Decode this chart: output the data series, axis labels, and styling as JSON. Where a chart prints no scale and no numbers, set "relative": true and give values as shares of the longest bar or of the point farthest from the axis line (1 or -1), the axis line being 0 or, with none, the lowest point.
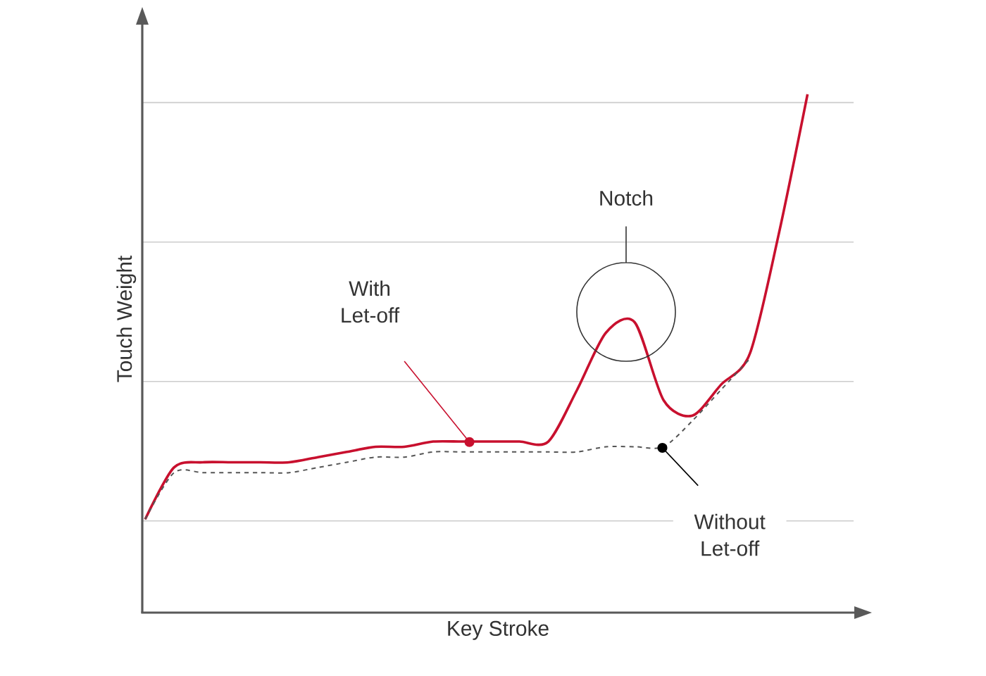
{
  "chart_data": {
    "type": "line",
    "relative": true,
    "xlabel": "Key Stroke",
    "ylabel": "Touch Weight",
    "grid": "y",
    "marker": "none",
    "categories": [
      null,
      null,
      null,
      null,
      null,
      null,
      null,
      null,
      null,
      null,
      null,
      null,
      null,
      null,
      null,
      null,
      null,
      null,
      null,
      null,
      null,
      null,
      null,
      null
    ],
    "series": [
      {
        "color": "#c8102e",
        "line_style": "solid",
        "values": [
          0.18,
          0.28,
          0.29,
          0.29,
          0.29,
          0.29,
          0.3,
          0.31,
          0.32,
          0.32,
          0.33,
          0.33,
          0.33,
          0.33,
          0.33,
          0.43,
          0.54,
          0.56,
          0.41,
          0.38,
          0.44,
          0.5,
          0.73,
          1.0
        ]
      },
      {
        "color": "#555555",
        "line_style": "dashed",
        "values": [
          0.18,
          0.27,
          0.27,
          0.27,
          0.27,
          0.27,
          0.28,
          0.29,
          0.3,
          0.3,
          0.31,
          0.31,
          0.31,
          0.31,
          0.31,
          0.31,
          0.32,
          0.32,
          0.32,
          0.37,
          0.43,
          0.49,
          null,
          null
        ]
      }
    ],
    "annotations": [
      "Notch",
      "With Let-off",
      "Without Let-off"
    ]
  }
}
